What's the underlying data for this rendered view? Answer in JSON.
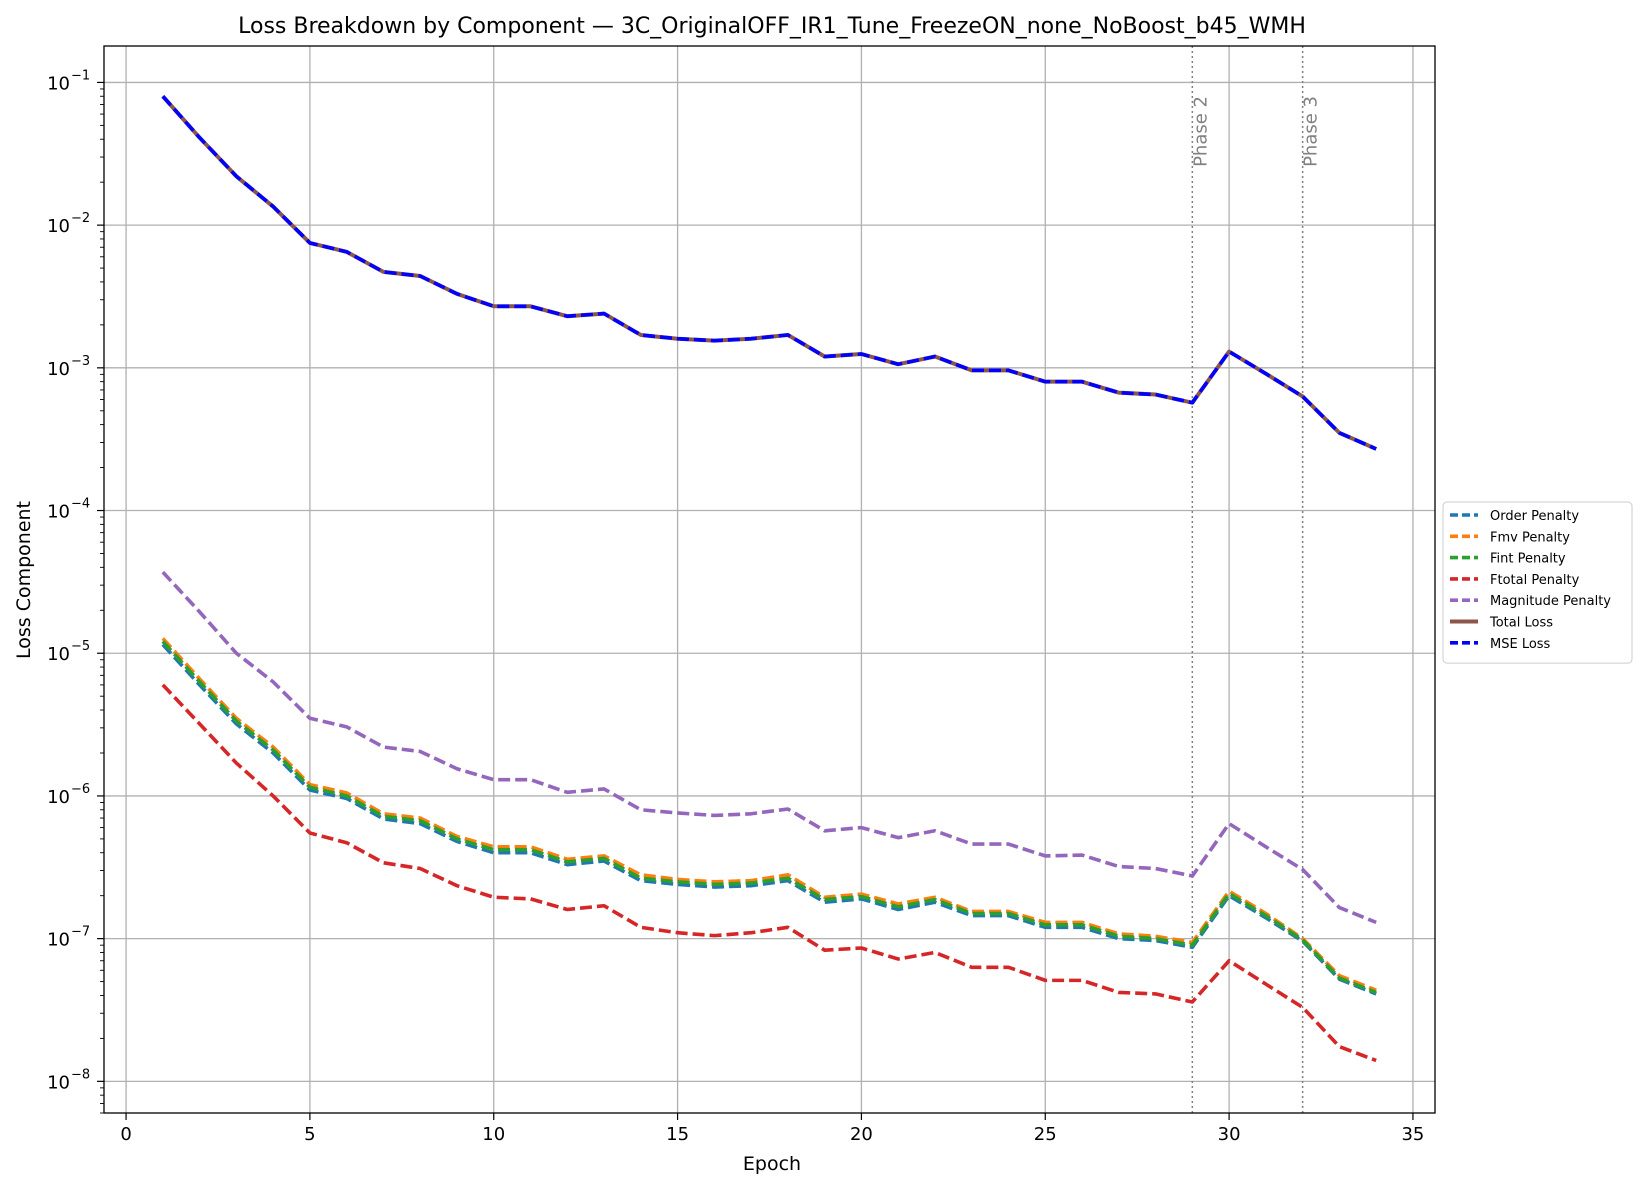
{
  "chart_data": {
    "type": "line",
    "title": "Loss Breakdown by Component — 3C_OriginalOFF_IR1_Tune_FreezeON_none_NoBoost_b45_WMH",
    "xlabel": "Epoch",
    "ylabel": "Loss Component",
    "xlim": [
      -0.6,
      35.6
    ],
    "ylim": [
      6e-09,
      0.18
    ],
    "yscale": "log",
    "grid": true,
    "legend_position": "right",
    "x_ticks": [
      0,
      5,
      10,
      15,
      20,
      25,
      30,
      35
    ],
    "x_tick_labels": [
      "0",
      "5",
      "10",
      "15",
      "20",
      "25",
      "30",
      "35"
    ],
    "y_ticks": [
      -8,
      -7,
      -6,
      -5,
      -4,
      -3,
      -2,
      -1
    ],
    "y_tick_labels": [
      "10",
      "10",
      "10",
      "10",
      "10",
      "10",
      "10",
      "10"
    ],
    "y_tick_exponents": [
      "−8",
      "−7",
      "−6",
      "−5",
      "−4",
      "−3",
      "−2",
      "−1"
    ],
    "x": [
      1,
      2,
      3,
      4,
      5,
      6,
      7,
      8,
      9,
      10,
      11,
      12,
      13,
      14,
      15,
      16,
      17,
      18,
      19,
      20,
      21,
      22,
      23,
      24,
      25,
      26,
      27,
      28,
      29,
      30,
      31,
      32,
      33,
      34
    ],
    "series": [
      {
        "name": "Order Penalty",
        "color": "#1f77b4",
        "style": "dashed",
        "values": [
          1.15e-05,
          6e-06,
          3.2e-06,
          2e-06,
          1.1e-06,
          9.6e-07,
          6.9e-07,
          6.4e-07,
          4.8e-07,
          4e-07,
          4e-07,
          3.3e-07,
          3.5e-07,
          2.55e-07,
          2.4e-07,
          2.3e-07,
          2.35e-07,
          2.55e-07,
          1.8e-07,
          1.9e-07,
          1.6e-07,
          1.8e-07,
          1.45e-07,
          1.45e-07,
          1.2e-07,
          1.2e-07,
          1e-07,
          9.7e-08,
          8.7e-08,
          2e-07,
          1.4e-07,
          9.6e-08,
          5.2e-08,
          4.1e-08
        ]
      },
      {
        "name": "Fmv Penalty",
        "color": "#ff7f0e",
        "style": "dashed",
        "values": [
          1.27e-05,
          6.6e-06,
          3.5e-06,
          2.2e-06,
          1.2e-06,
          1.05e-06,
          7.5e-07,
          7e-07,
          5.2e-07,
          4.4e-07,
          4.4e-07,
          3.6e-07,
          3.8e-07,
          2.8e-07,
          2.6e-07,
          2.5e-07,
          2.55e-07,
          2.8e-07,
          1.95e-07,
          2.05e-07,
          1.75e-07,
          1.95e-07,
          1.55e-07,
          1.55e-07,
          1.3e-07,
          1.3e-07,
          1.08e-07,
          1.04e-07,
          9.4e-08,
          2.15e-07,
          1.5e-07,
          1e-07,
          5.5e-08,
          4.35e-08
        ]
      },
      {
        "name": "Fint Penalty",
        "color": "#2ca02c",
        "style": "dashed",
        "values": [
          1.21e-05,
          6.3e-06,
          3.35e-06,
          2.1e-06,
          1.15e-06,
          1e-06,
          7.2e-07,
          6.7e-07,
          5e-07,
          4.2e-07,
          4.2e-07,
          3.45e-07,
          3.65e-07,
          2.65e-07,
          2.5e-07,
          2.4e-07,
          2.45e-07,
          2.65e-07,
          1.88e-07,
          1.97e-07,
          1.67e-07,
          1.88e-07,
          1.5e-07,
          1.5e-07,
          1.25e-07,
          1.25e-07,
          1.04e-07,
          1e-07,
          9e-08,
          2.07e-07,
          1.45e-07,
          9.8e-08,
          5.3e-08,
          4.2e-08
        ]
      },
      {
        "name": "Ftotal Penalty",
        "color": "#d62728",
        "style": "dashed",
        "values": [
          6e-06,
          3.2e-06,
          1.7e-06,
          1e-06,
          5.5e-07,
          4.7e-07,
          3.4e-07,
          3.1e-07,
          2.35e-07,
          1.95e-07,
          1.9e-07,
          1.6e-07,
          1.7e-07,
          1.2e-07,
          1.1e-07,
          1.05e-07,
          1.1e-07,
          1.2e-07,
          8.3e-08,
          8.6e-08,
          7.2e-08,
          8e-08,
          6.3e-08,
          6.3e-08,
          5.1e-08,
          5.1e-08,
          4.2e-08,
          4.1e-08,
          3.6e-08,
          7e-08,
          4.8e-08,
          3.3e-08,
          1.75e-08,
          1.4e-08
        ]
      },
      {
        "name": "Magnitude Penalty",
        "color": "#9467bd",
        "style": "dashed",
        "values": [
          3.7e-05,
          1.95e-05,
          1e-05,
          6.3e-06,
          3.5e-06,
          3.05e-06,
          2.2e-06,
          2.05e-06,
          1.55e-06,
          1.3e-06,
          1.3e-06,
          1.06e-06,
          1.12e-06,
          8e-07,
          7.6e-07,
          7.3e-07,
          7.5e-07,
          8.1e-07,
          5.7e-07,
          6e-07,
          5.1e-07,
          5.7e-07,
          4.6e-07,
          4.6e-07,
          3.8e-07,
          3.85e-07,
          3.2e-07,
          3.1e-07,
          2.75e-07,
          6.4e-07,
          4.4e-07,
          3.05e-07,
          1.65e-07,
          1.3e-07
        ]
      },
      {
        "name": "Total Loss",
        "color": "#8c564b",
        "style": "solid",
        "values": [
          0.08,
          0.041,
          0.022,
          0.0135,
          0.0075,
          0.0065,
          0.0047,
          0.0044,
          0.0033,
          0.0027,
          0.0027,
          0.0023,
          0.0024,
          0.0017,
          0.0016,
          0.00155,
          0.0016,
          0.0017,
          0.0012,
          0.00125,
          0.00106,
          0.0012,
          0.00096,
          0.00096,
          0.0008,
          0.0008,
          0.00067,
          0.00065,
          0.00057,
          0.0013,
          0.00091,
          0.00063,
          0.00035,
          0.00027
        ]
      },
      {
        "name": "MSE Loss",
        "color": "#0000ff",
        "style": "dashed",
        "values": [
          0.08,
          0.041,
          0.022,
          0.0135,
          0.0075,
          0.0065,
          0.0047,
          0.0044,
          0.0033,
          0.0027,
          0.0027,
          0.0023,
          0.0024,
          0.0017,
          0.0016,
          0.00155,
          0.0016,
          0.0017,
          0.0012,
          0.00125,
          0.00106,
          0.0012,
          0.00096,
          0.00096,
          0.0008,
          0.0008,
          0.00067,
          0.00065,
          0.00057,
          0.0013,
          0.00091,
          0.00063,
          0.00035,
          0.00027
        ]
      }
    ],
    "annotations": [
      {
        "x": 29,
        "label": "Phase 2"
      },
      {
        "x": 32,
        "label": "Phase 3"
      }
    ]
  }
}
